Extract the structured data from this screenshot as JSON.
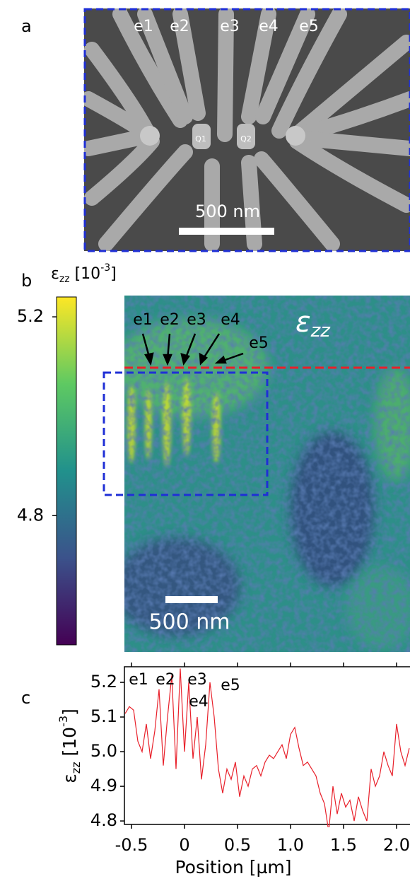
{
  "panel_a": {
    "label": "a",
    "electrodes": [
      "e1",
      "e2",
      "e3",
      "e4",
      "e5"
    ],
    "qubits": [
      "Q1",
      "Q2"
    ],
    "scale_bar": "500 nm"
  },
  "panel_b": {
    "label": "b",
    "colorbar": {
      "title": {
        "symbol": "ε",
        "subscript": "zz",
        "unit": " [10",
        "exponent": "-3",
        "unit_end": "]"
      },
      "clim": [
        4.54,
        5.24
      ],
      "ticks": [
        4.8,
        5.2
      ]
    },
    "map_label": {
      "symbol": "ε",
      "subscript": "zz"
    },
    "electrodes": [
      "e1",
      "e2",
      "e3",
      "e4",
      "e5"
    ],
    "scale_bar": "500 nm"
  },
  "chart_data": {
    "type": "line",
    "label": "c",
    "ylabel": {
      "symbol": "ε",
      "subscript": "zz",
      "unit": " [10",
      "exponent": "-3",
      "unit_end": "]"
    },
    "xlabel": "Position [µm]",
    "annotations": [
      "e1",
      "e2",
      "e3",
      "e4",
      "e5"
    ],
    "color": "#e8202a",
    "xlim": [
      -0.567,
      2.127
    ],
    "ylim": [
      4.79,
      5.245
    ],
    "xticks": [
      -0.5,
      0,
      0.5,
      {
        "value": 1,
        "label": "1.0"
      },
      1.5,
      {
        "value": 2,
        "label": "2.0"
      }
    ],
    "yticks": [
      4.8,
      4.9,
      {
        "value": 5,
        "label": "5.0"
      },
      5.1,
      5.2
    ],
    "x": [
      -0.56,
      -0.52,
      -0.48,
      -0.44,
      -0.4,
      -0.36,
      -0.32,
      -0.28,
      -0.24,
      -0.2,
      -0.16,
      -0.12,
      -0.08,
      -0.04,
      0.0,
      0.04,
      0.08,
      0.12,
      0.16,
      0.2,
      0.24,
      0.28,
      0.32,
      0.36,
      0.4,
      0.44,
      0.48,
      0.52,
      0.56,
      0.6,
      0.64,
      0.68,
      0.72,
      0.76,
      0.8,
      0.84,
      0.88,
      0.92,
      0.96,
      1.0,
      1.04,
      1.08,
      1.12,
      1.16,
      1.2,
      1.24,
      1.28,
      1.32,
      1.36,
      1.4,
      1.44,
      1.48,
      1.52,
      1.56,
      1.6,
      1.64,
      1.68,
      1.72,
      1.76,
      1.8,
      1.84,
      1.88,
      1.92,
      1.96,
      2.0,
      2.04,
      2.08,
      2.12
    ],
    "values": [
      5.11,
      5.13,
      5.12,
      5.03,
      5.0,
      5.08,
      4.98,
      5.06,
      5.18,
      4.96,
      5.1,
      5.22,
      4.95,
      5.24,
      5.0,
      5.2,
      4.98,
      5.1,
      4.92,
      5.02,
      5.2,
      5.1,
      4.95,
      4.88,
      4.95,
      4.92,
      4.97,
      4.87,
      4.93,
      4.9,
      4.95,
      4.96,
      4.93,
      4.97,
      4.99,
      4.98,
      5.0,
      5.02,
      4.98,
      5.05,
      5.07,
      5.01,
      4.96,
      4.97,
      4.95,
      4.93,
      4.88,
      4.85,
      4.77,
      4.9,
      4.82,
      4.88,
      4.84,
      4.86,
      4.8,
      4.87,
      4.83,
      4.8,
      4.95,
      4.9,
      4.93,
      5.0,
      4.96,
      4.93,
      5.08,
      5.0,
      4.96,
      5.01
    ]
  }
}
